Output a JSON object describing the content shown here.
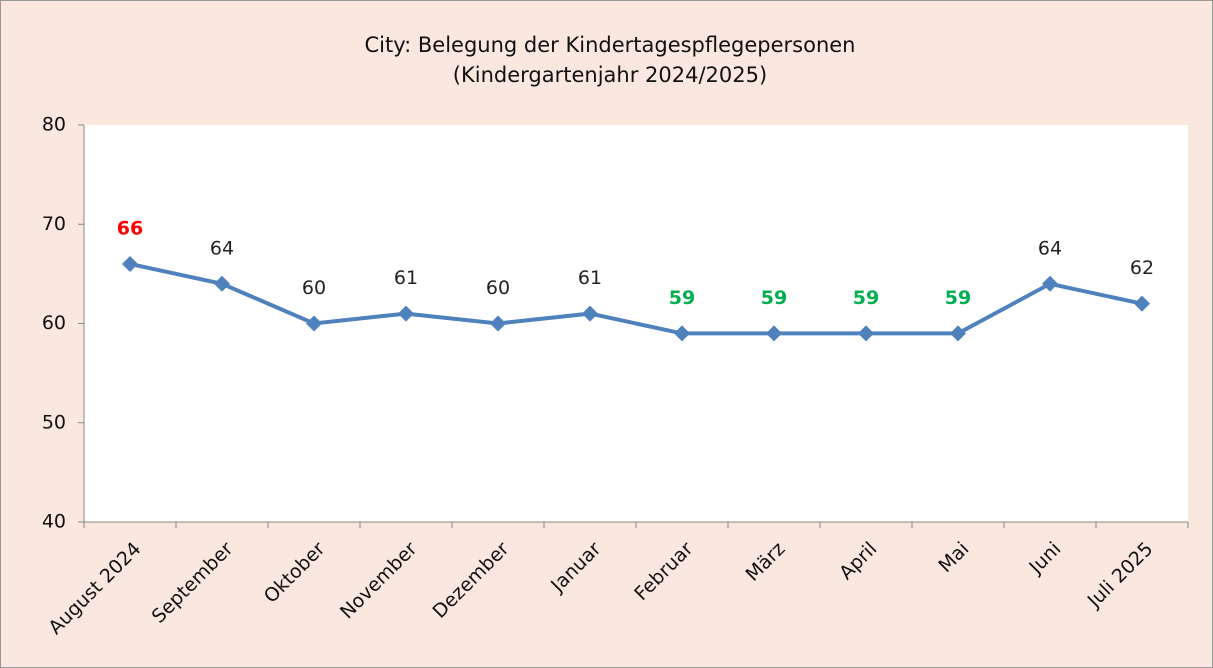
{
  "chart_data": {
    "type": "line",
    "title": "City: Belegung der Kindertagespflegepersonen",
    "subtitle": "(Kindergartenjahr 2024/2025)",
    "categories": [
      "August 2024",
      "September",
      "Oktober",
      "November",
      "Dezember",
      "Januar",
      "Februar",
      "März",
      "April",
      "Mai",
      "Juni",
      "Juli 2025"
    ],
    "values": [
      66,
      64,
      60,
      61,
      60,
      61,
      59,
      59,
      59,
      59,
      64,
      62
    ],
    "color": "#4f81bd",
    "label_colors": [
      "#ff0000",
      "#222222",
      "#222222",
      "#222222",
      "#222222",
      "#222222",
      "#00b050",
      "#00b050",
      "#00b050",
      "#00b050",
      "#222222",
      "#222222"
    ],
    "ylim": [
      40,
      80
    ],
    "yticks": [
      40,
      50,
      60,
      70,
      80
    ],
    "grid": false
  }
}
